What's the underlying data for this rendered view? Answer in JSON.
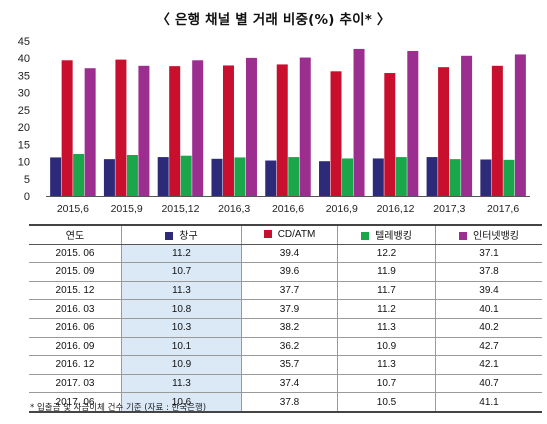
{
  "chart_data": {
    "type": "bar",
    "title": "〈 은행 채널 별 거래 비중(%) 추이* 〉",
    "categories": [
      "2015,6",
      "2015,9",
      "2015,12",
      "2016,3",
      "2016,6",
      "2016,9",
      "2016,12",
      "2017,3",
      "2017,6"
    ],
    "ylim": [
      0,
      45
    ],
    "yticks": [
      0,
      5,
      10,
      15,
      20,
      25,
      30,
      35,
      40,
      45
    ],
    "grid": false,
    "legend_position": "in-table-header",
    "series": [
      {
        "name": "창구",
        "color": "#2e2a7a",
        "values": [
          11.2,
          10.7,
          11.3,
          10.8,
          10.3,
          10.1,
          10.9,
          11.3,
          10.6
        ]
      },
      {
        "name": "CD/ATM",
        "color": "#c8102e",
        "values": [
          39.4,
          39.6,
          37.7,
          37.9,
          38.2,
          36.2,
          35.7,
          37.4,
          37.8
        ]
      },
      {
        "name": "텔레뱅킹",
        "color": "#1aa64a",
        "values": [
          12.2,
          11.9,
          11.7,
          11.2,
          11.3,
          10.9,
          11.3,
          10.7,
          10.5
        ]
      },
      {
        "name": "인터넷뱅킹",
        "color": "#9b2e8f",
        "values": [
          37.1,
          37.8,
          39.4,
          40.1,
          40.2,
          42.7,
          42.1,
          40.7,
          41.1
        ]
      }
    ]
  },
  "table": {
    "year_header": "연도",
    "rows": [
      {
        "date": "2015. 06",
        "values": [
          "11.2",
          "39.4",
          "12.2",
          "37.1"
        ]
      },
      {
        "date": "2015. 09",
        "values": [
          "10.7",
          "39.6",
          "11.9",
          "37.8"
        ]
      },
      {
        "date": "2015. 12",
        "values": [
          "11.3",
          "37.7",
          "11.7",
          "39.4"
        ]
      },
      {
        "date": "2016. 03",
        "values": [
          "10.8",
          "37.9",
          "11.2",
          "40.1"
        ]
      },
      {
        "date": "2016. 06",
        "values": [
          "10.3",
          "38.2",
          "11.3",
          "40.2"
        ]
      },
      {
        "date": "2016. 09",
        "values": [
          "10.1",
          "36.2",
          "10.9",
          "42.7"
        ]
      },
      {
        "date": "2016. 12",
        "values": [
          "10.9",
          "35.7",
          "11.3",
          "42.1"
        ]
      },
      {
        "date": "2017. 03",
        "values": [
          "11.3",
          "37.4",
          "10.7",
          "40.7"
        ]
      },
      {
        "date": "2017. 06",
        "values": [
          "10.6",
          "37.8",
          "10.5",
          "41.1"
        ]
      }
    ]
  },
  "footnote": "* 입출금 및 자금이체 건수 기준 (자료 : 한국은행)"
}
